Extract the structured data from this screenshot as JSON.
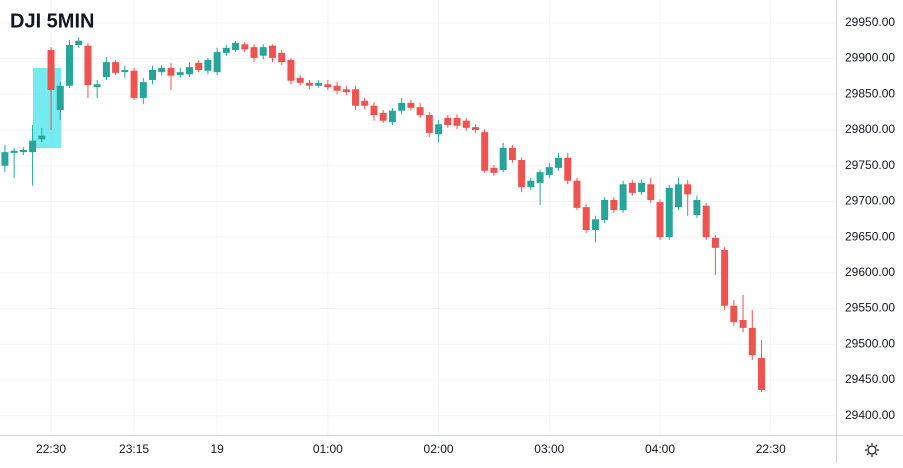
{
  "chart_data": {
    "type": "candlestick",
    "title": "DJI 5MIN",
    "categories": [
      null,
      null,
      null,
      null,
      null,
      "22:30",
      null,
      null,
      null,
      null,
      null,
      null,
      null,
      null,
      "23:15",
      null,
      null,
      null,
      null,
      null,
      null,
      null,
      null,
      "19",
      null,
      null,
      null,
      null,
      null,
      null,
      null,
      null,
      null,
      null,
      null,
      "01:00",
      null,
      null,
      null,
      null,
      null,
      null,
      null,
      null,
      null,
      null,
      null,
      "02:00",
      null,
      null,
      null,
      null,
      null,
      null,
      null,
      null,
      null,
      null,
      null,
      "03:00",
      null,
      null,
      null,
      null,
      null,
      null,
      null,
      null,
      null,
      null,
      null,
      "04:00",
      null,
      null,
      null,
      null,
      null,
      null,
      null,
      null,
      null,
      null,
      null,
      "22:30"
    ],
    "open": [
      29750,
      29768,
      29769,
      29769,
      29787,
      29912,
      29828,
      29862,
      29919,
      29918,
      29860,
      29874,
      29895,
      29881,
      29883,
      29845,
      29870,
      29881,
      29887,
      29877,
      29878,
      29894,
      29883,
      29881,
      29908,
      29912,
      29920,
      29916,
      29904,
      29918,
      29908,
      29898,
      29873,
      29866,
      29862,
      29864,
      29862,
      29857,
      29857,
      29841,
      29834,
      29824,
      29811,
      29827,
      29838,
      29832,
      29821,
      29794,
      29817,
      29817,
      29813,
      29804,
      29797,
      29747,
      29744,
      29775,
      29758,
      29720,
      29726,
      29737,
      29747,
      29761,
      29729,
      29692,
      29660,
      29674,
      29702,
      29688,
      29726,
      29713,
      29724,
      29699,
      29650,
      29692,
      29724,
      29681,
      29694,
      29649,
      29632,
      29554,
      29534,
      29523,
      29481,
      null
    ],
    "high": [
      29779,
      29775,
      29776,
      29807,
      29803,
      29916,
      29867,
      29926,
      29930,
      29922,
      29870,
      29902,
      29898,
      29890,
      29887,
      29873,
      29890,
      29891,
      29894,
      29887,
      29895,
      29898,
      29901,
      29915,
      29919,
      29925,
      29923,
      29920,
      29920,
      29920,
      29912,
      29901,
      29877,
      29870,
      29870,
      29870,
      29867,
      29862,
      29862,
      29845,
      29839,
      29828,
      29831,
      29845,
      29842,
      29838,
      29825,
      29814,
      29821,
      29822,
      29817,
      29808,
      29801,
      29751,
      29782,
      29779,
      29762,
      29733,
      29745,
      29754,
      29768,
      29768,
      29733,
      29696,
      29680,
      29706,
      29706,
      29729,
      29730,
      29731,
      29733,
      29703,
      29723,
      29733,
      29730,
      29708,
      29698,
      29653,
      29636,
      29562,
      29569,
      29548,
      29506,
      null
    ],
    "low": [
      29741,
      29733,
      29765,
      29722,
      29783,
      29800,
      29814,
      29859,
      29915,
      29845,
      29845,
      29870,
      29877,
      29873,
      29842,
      29836,
      29864,
      29876,
      29856,
      29873,
      29874,
      29881,
      29878,
      29877,
      29904,
      29909,
      29909,
      29895,
      29899,
      29895,
      29891,
      29864,
      29862,
      29857,
      29859,
      29856,
      29850,
      29849,
      29828,
      29829,
      29813,
      29810,
      29807,
      29822,
      29827,
      29817,
      29790,
      29783,
      29803,
      29801,
      29799,
      29796,
      29740,
      29736,
      29741,
      29754,
      29713,
      29716,
      29695,
      29733,
      29743,
      29724,
      29688,
      29656,
      29643,
      29670,
      29684,
      29684,
      29708,
      29709,
      29698,
      29646,
      29646,
      29688,
      29680,
      29677,
      29646,
      29597,
      29548,
      29526,
      29517,
      29478,
      29433,
      null
    ],
    "close": [
      29769,
      29771,
      29772,
      29785,
      29792,
      29856,
      29862,
      29919,
      29925,
      29863,
      29864,
      29895,
      29880,
      29884,
      29845,
      29867,
      29884,
      29887,
      29876,
      29881,
      29888,
      29884,
      29898,
      29909,
      29915,
      29922,
      29913,
      29901,
      29916,
      29901,
      29895,
      29869,
      29866,
      29862,
      29866,
      29860,
      29855,
      29853,
      29834,
      29834,
      29821,
      29813,
      29827,
      29838,
      29831,
      29821,
      29796,
      29808,
      29807,
      29806,
      29803,
      29800,
      29743,
      29740,
      29775,
      29758,
      29720,
      29729,
      29741,
      29748,
      29761,
      29729,
      29691,
      29660,
      29675,
      29702,
      29688,
      29724,
      29712,
      29726,
      29702,
      29650,
      29719,
      29724,
      29710,
      29702,
      29650,
      29635,
      29554,
      29531,
      29523,
      29485,
      29436,
      null
    ],
    "up_color": "#26a69a",
    "down_color": "#ef5350",
    "ylim": [
      29373,
      29982
    ],
    "yticks": [
      {
        "value": 29400,
        "label": "29400.00"
      },
      {
        "value": 29450,
        "label": "29450.00"
      },
      {
        "value": 29500,
        "label": "29500.00"
      },
      {
        "value": 29550,
        "label": "29550.00"
      },
      {
        "value": 29600,
        "label": "29600.00"
      },
      {
        "value": 29650,
        "label": "29650.00"
      },
      {
        "value": 29700,
        "label": "29700.00"
      },
      {
        "value": 29750,
        "label": "29750.00"
      },
      {
        "value": 29800,
        "label": "29800.00"
      },
      {
        "value": 29850,
        "label": "29850.00"
      },
      {
        "value": 29900,
        "label": "29900.00"
      },
      {
        "value": 29950,
        "label": "29950.00"
      }
    ],
    "grid": true
  }
}
